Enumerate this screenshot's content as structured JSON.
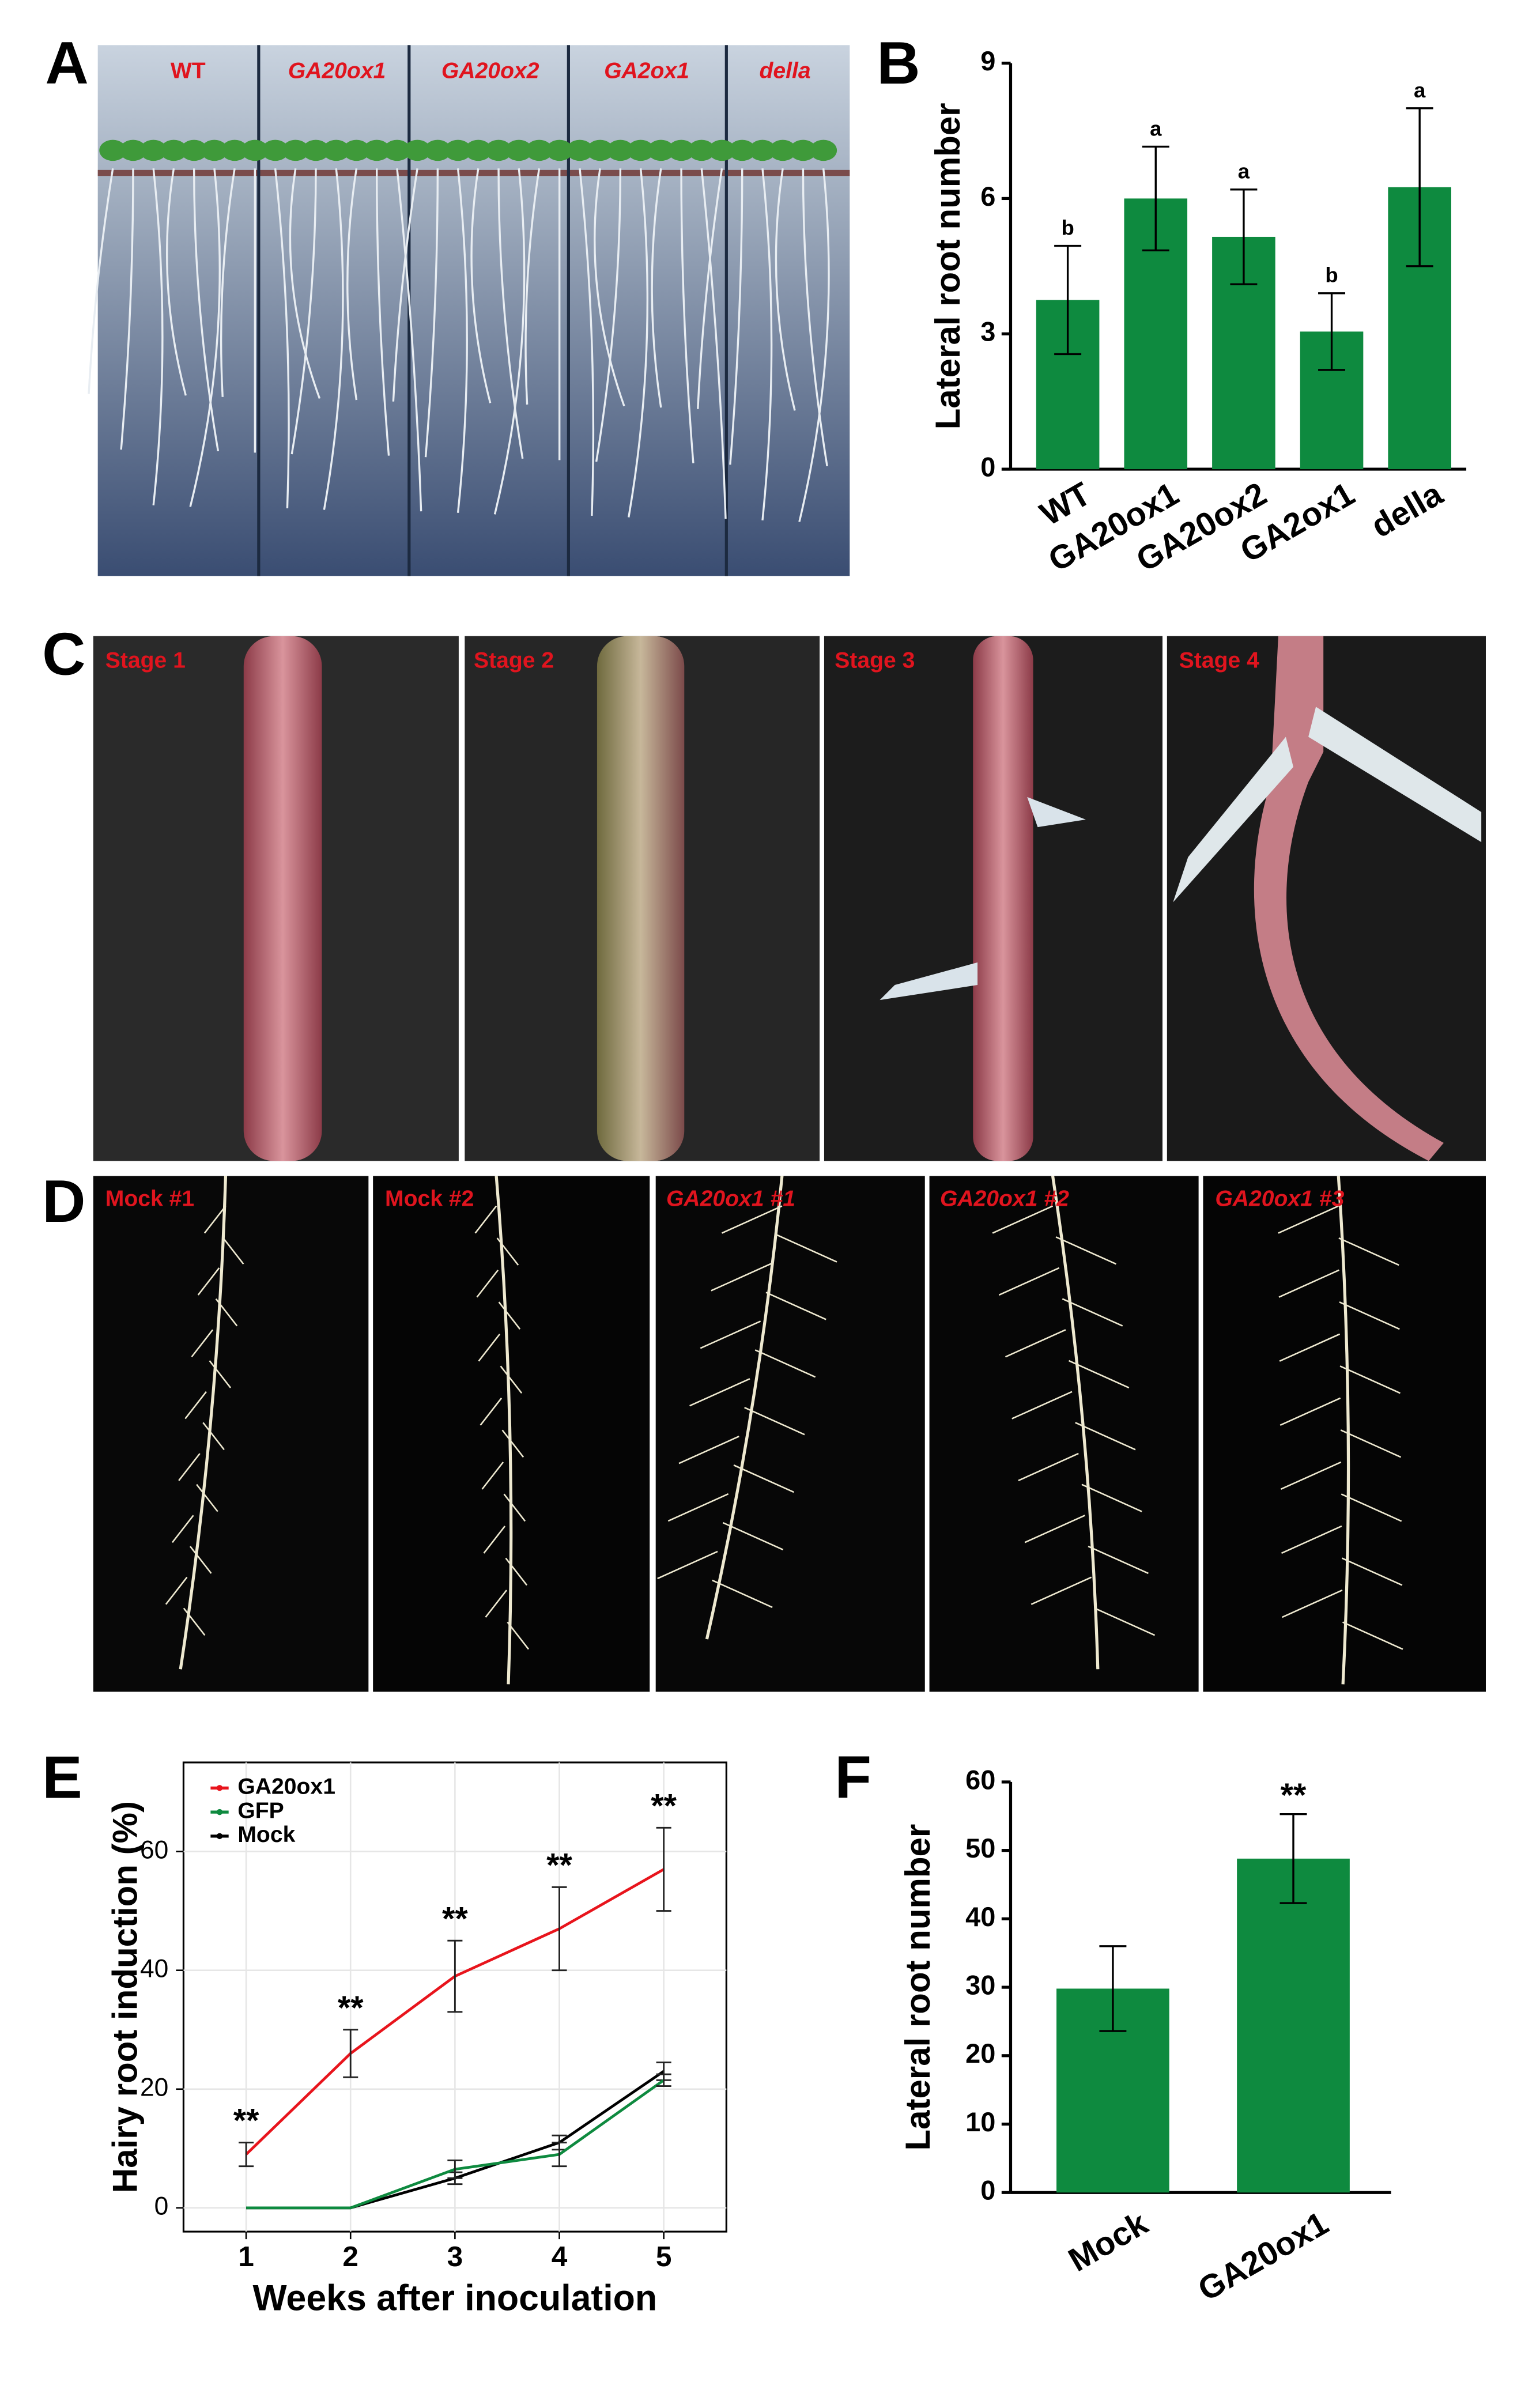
{
  "panel_labels": [
    "A",
    "B",
    "C",
    "D",
    "E",
    "F"
  ],
  "photo_a_labels": [
    "WT",
    "GA20ox1",
    "GA20ox2",
    "GA2ox1",
    "della"
  ],
  "photo_c_labels": [
    "Stage 1",
    "Stage 2",
    "Stage 3",
    "Stage 4"
  ],
  "photo_d_labels": [
    "Mock #1",
    "Mock #2",
    "GA20ox1 #1",
    "GA20ox1 #2",
    "GA20ox1 #3"
  ],
  "chart_data": [
    {
      "type": "bar",
      "y_label": "Lateral root number",
      "categories": [
        "WT",
        "GA20ox1",
        "GA20ox2",
        "GA2ox1",
        "della"
      ],
      "values": [
        3.75,
        6.0,
        5.15,
        3.05,
        6.25
      ],
      "errors": [
        1.2,
        1.15,
        1.05,
        0.85,
        1.75
      ],
      "annotations": [
        "b",
        "a",
        "a",
        "b",
        "a"
      ],
      "color": "#0e8a3f",
      "ylim": [
        0,
        9
      ],
      "yticks": [
        0,
        3,
        6,
        9
      ]
    },
    {
      "type": "line",
      "x_label": "Weeks after inoculation",
      "y_label": "Hairy root induction (%)",
      "x": [
        1,
        2,
        3,
        4,
        5
      ],
      "series": [
        {
          "name": "GA20ox1",
          "color": "#e8141c",
          "values": [
            9,
            26,
            39,
            47,
            57
          ],
          "errors": [
            2,
            4,
            6,
            7,
            7
          ],
          "annotations": [
            "**",
            "**",
            "**",
            "**",
            "**"
          ]
        },
        {
          "name": "GFP",
          "color": "#0e8a3f",
          "values": [
            0,
            0,
            6.5,
            9,
            21.5
          ],
          "errors": [
            0,
            0,
            1.5,
            2,
            1
          ]
        },
        {
          "name": "Mock",
          "color": "#000000",
          "values": [
            0,
            0,
            5,
            11,
            23
          ],
          "errors": [
            0,
            0,
            1,
            1.2,
            1.5
          ]
        }
      ],
      "xlim": [
        0.4,
        5.6
      ],
      "xticks": [
        1,
        2,
        3,
        4,
        5
      ],
      "ylim": [
        -4,
        75
      ],
      "yticks": [
        0,
        20,
        40,
        60
      ],
      "grid": true,
      "legend": "top-left"
    },
    {
      "type": "bar",
      "y_label": "Lateral root number",
      "categories": [
        "Mock",
        "GA20ox1"
      ],
      "values": [
        29.8,
        48.8
      ],
      "errors": [
        6.2,
        6.5
      ],
      "annotations": [
        null,
        "**"
      ],
      "color": "#0e8a3f",
      "ylim": [
        0,
        60
      ],
      "yticks": [
        0,
        10,
        20,
        30,
        40,
        50,
        60
      ]
    }
  ]
}
